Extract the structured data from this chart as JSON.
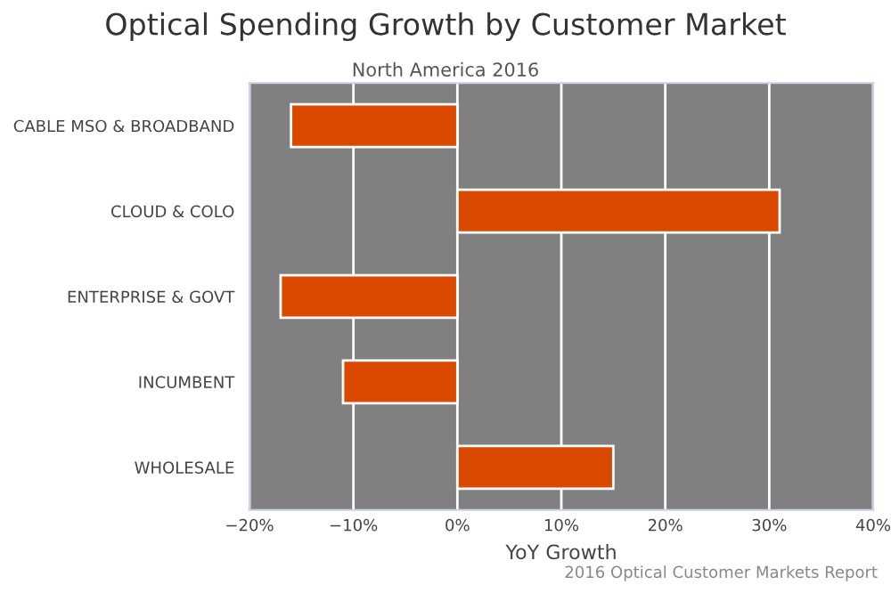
{
  "chart_data": {
    "type": "bar",
    "orientation": "horizontal",
    "title": "Optical Spending Growth by Customer Market",
    "subtitle": "North America 2016",
    "xlabel": "YoY Growth",
    "categories": [
      "CABLE MSO & BROADBAND",
      "CLOUD & COLO",
      "ENTERPRISE & GOVT",
      "INCUMBENT",
      "WHOLESALE"
    ],
    "values": [
      -16,
      31,
      -17,
      -11,
      15
    ],
    "color": "#d94a00",
    "xlim": [
      -20,
      40
    ],
    "xticks": [
      {
        "value": -20,
        "label": "−20%"
      },
      {
        "value": -10,
        "label": "−10%"
      },
      {
        "value": 0,
        "label": "0%"
      },
      {
        "value": 10,
        "label": "10%"
      },
      {
        "value": 20,
        "label": "20%"
      },
      {
        "value": 30,
        "label": "30%"
      },
      {
        "value": 40,
        "label": "40%"
      }
    ],
    "grid": "x",
    "legend": false,
    "annotations": [
      "2016 Optical Customer Markets Report"
    ]
  }
}
